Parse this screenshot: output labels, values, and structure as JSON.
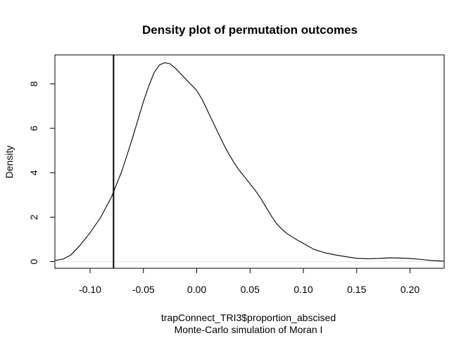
{
  "chart_data": {
    "type": "line",
    "title": "Density plot of permutation outcomes",
    "xlabel": "trapConnect_TRI3$proportion_abscised",
    "sublabel": "Monte-Carlo simulation of Moran I",
    "ylabel": "Density",
    "xlim": [
      -0.133,
      0.232
    ],
    "ylim": [
      -0.3,
      9.3
    ],
    "x_ticks": [
      -0.1,
      -0.05,
      0.0,
      0.05,
      0.1,
      0.15,
      0.2
    ],
    "x_tick_labels": [
      "-0.10",
      "-0.05",
      "0.00",
      "0.05",
      "0.10",
      "0.15",
      "0.20"
    ],
    "y_ticks": [
      0,
      2,
      4,
      6,
      8
    ],
    "y_tick_labels": [
      "0",
      "2",
      "4",
      "6",
      "8"
    ],
    "grid": false,
    "legend": "none",
    "baseline": 0,
    "observed_line_x": -0.078,
    "series": [
      {
        "x": [
          -0.133,
          -0.125,
          -0.118,
          -0.11,
          -0.1,
          -0.09,
          -0.08,
          -0.07,
          -0.06,
          -0.05,
          -0.045,
          -0.04,
          -0.035,
          -0.03,
          -0.025,
          -0.02,
          -0.015,
          -0.01,
          -0.005,
          0.0,
          0.005,
          0.01,
          0.015,
          0.02,
          0.025,
          0.03,
          0.035,
          0.04,
          0.045,
          0.05,
          0.055,
          0.06,
          0.065,
          0.07,
          0.075,
          0.08,
          0.085,
          0.09,
          0.095,
          0.1,
          0.11,
          0.12,
          0.13,
          0.14,
          0.15,
          0.16,
          0.17,
          0.18,
          0.19,
          0.2,
          0.21,
          0.22,
          0.232
        ],
        "values": [
          0.05,
          0.12,
          0.3,
          0.7,
          1.3,
          2.0,
          2.9,
          4.1,
          5.6,
          7.2,
          7.9,
          8.5,
          8.85,
          8.95,
          8.9,
          8.7,
          8.45,
          8.2,
          7.95,
          7.7,
          7.3,
          6.8,
          6.3,
          5.8,
          5.3,
          4.85,
          4.45,
          4.1,
          3.8,
          3.5,
          3.2,
          2.85,
          2.45,
          2.05,
          1.7,
          1.45,
          1.25,
          1.1,
          0.95,
          0.82,
          0.55,
          0.4,
          0.3,
          0.22,
          0.15,
          0.13,
          0.14,
          0.17,
          0.16,
          0.14,
          0.1,
          0.05,
          0.02
        ]
      }
    ]
  }
}
